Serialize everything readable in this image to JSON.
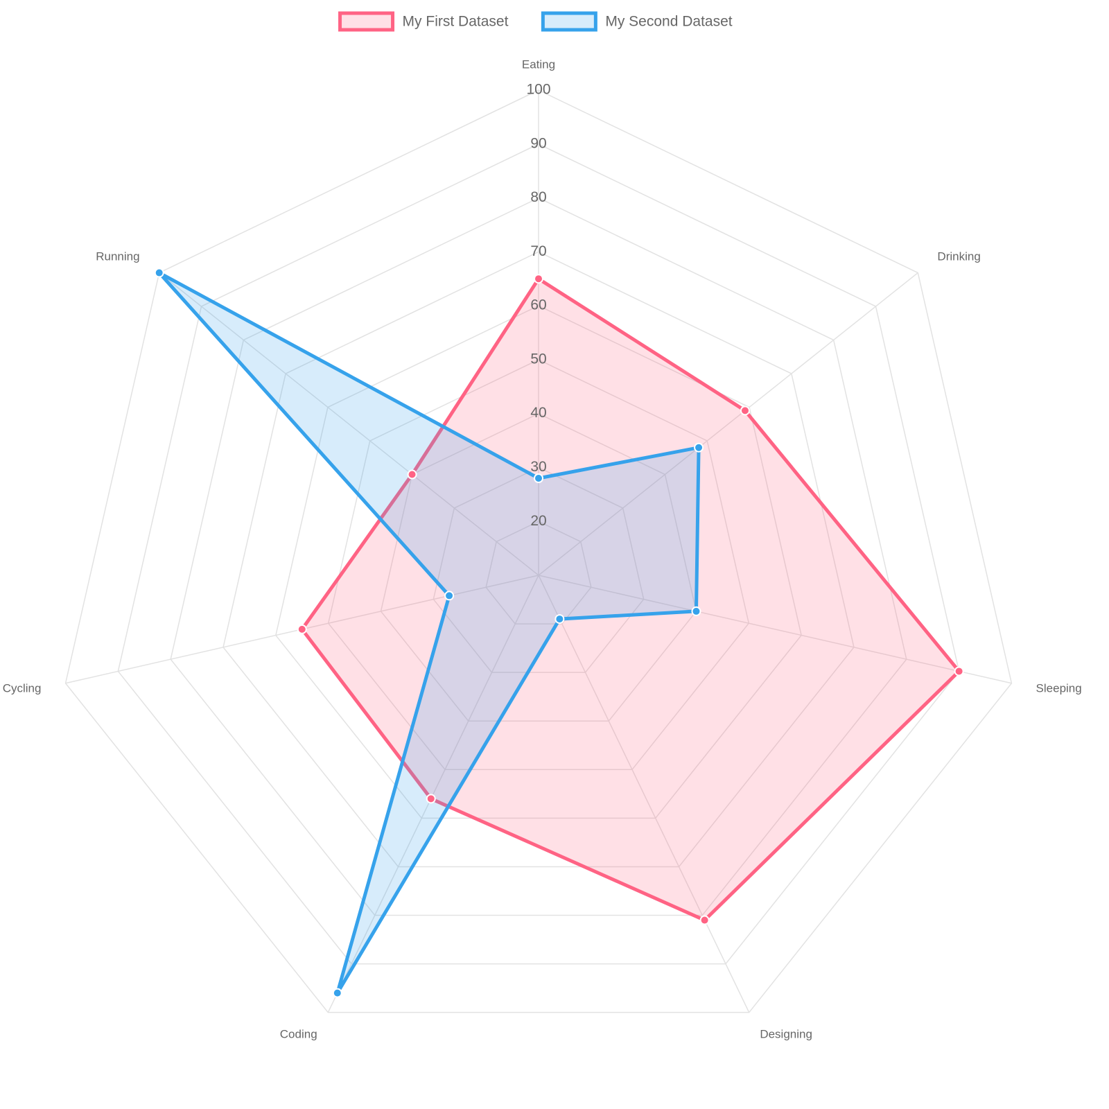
{
  "chart_data": {
    "type": "radar",
    "categories": [
      "Eating",
      "Drinking",
      "Sleeping",
      "Designing",
      "Coding",
      "Cycling",
      "Running"
    ],
    "series": [
      {
        "name": "My First Dataset",
        "color": "#ff6384",
        "values": [
          65,
          59,
          90,
          81,
          56,
          55,
          40
        ]
      },
      {
        "name": "My Second Dataset",
        "color": "#36a2eb",
        "values": [
          28,
          48,
          40,
          19,
          96,
          27,
          100
        ]
      }
    ],
    "rlim": [
      10,
      100
    ],
    "rticks": [
      20,
      30,
      40,
      50,
      60,
      70,
      80,
      90,
      100
    ],
    "grid": true,
    "legend": "top"
  }
}
